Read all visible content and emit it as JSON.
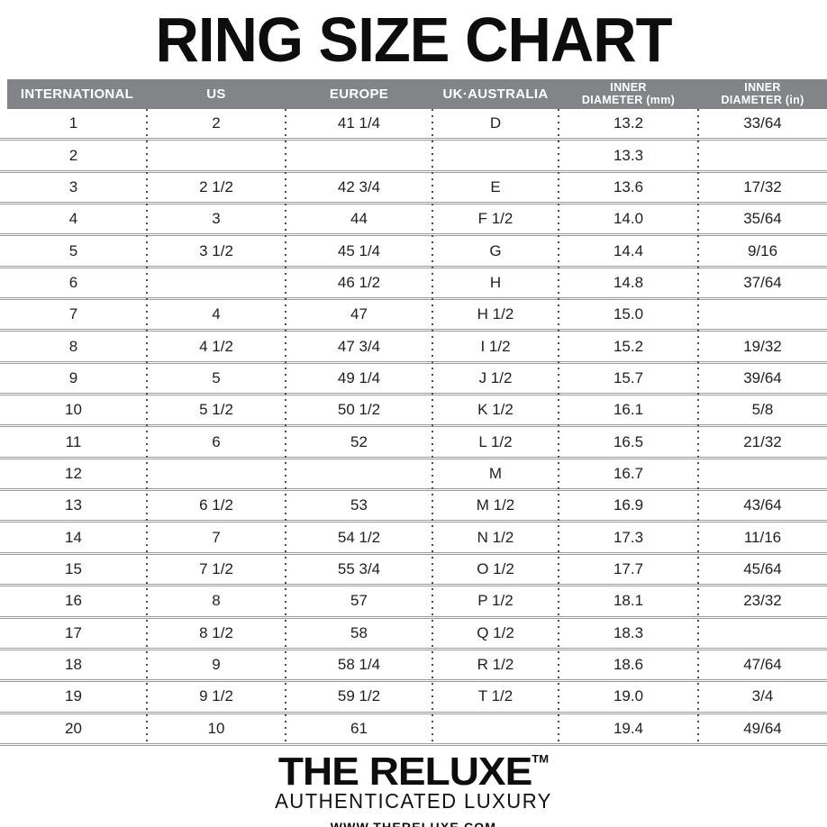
{
  "title": "RING SIZE CHART",
  "chart_data": {
    "type": "table",
    "title": "RING SIZE CHART",
    "columns": [
      "INTERNATIONAL",
      "US",
      "EUROPE",
      "UK·AUSTRALIA",
      "INNER DIAMETER (mm)",
      "INNER DIAMETER (in)"
    ],
    "header_lines": [
      [
        "INTERNATIONAL"
      ],
      [
        "US"
      ],
      [
        "EUROPE"
      ],
      [
        "UK·AUSTRALIA"
      ],
      [
        "INNER",
        "DIAMETER (mm)"
      ],
      [
        "INNER",
        "DIAMETER (in)"
      ]
    ],
    "rows": [
      [
        "1",
        "2",
        "41 1/4",
        "D",
        "13.2",
        "33/64"
      ],
      [
        "2",
        "",
        "",
        "",
        "13.3",
        ""
      ],
      [
        "3",
        "2 1/2",
        "42 3/4",
        "E",
        "13.6",
        "17/32"
      ],
      [
        "4",
        "3",
        "44",
        "F 1/2",
        "14.0",
        "35/64"
      ],
      [
        "5",
        "3 1/2",
        "45 1/4",
        "G",
        "14.4",
        "9/16"
      ],
      [
        "6",
        "",
        "46 1/2",
        "H",
        "14.8",
        "37/64"
      ],
      [
        "7",
        "4",
        "47",
        "H 1/2",
        "15.0",
        ""
      ],
      [
        "8",
        "4 1/2",
        "47 3/4",
        "I 1/2",
        "15.2",
        "19/32"
      ],
      [
        "9",
        "5",
        "49 1/4",
        "J 1/2",
        "15.7",
        "39/64"
      ],
      [
        "10",
        "5 1/2",
        "50 1/2",
        "K 1/2",
        "16.1",
        "5/8"
      ],
      [
        "11",
        "6",
        "52",
        "L 1/2",
        "16.5",
        "21/32"
      ],
      [
        "12",
        "",
        "",
        "M",
        "16.7",
        ""
      ],
      [
        "13",
        "6 1/2",
        "53",
        "M 1/2",
        "16.9",
        "43/64"
      ],
      [
        "14",
        "7",
        "54 1/2",
        "N 1/2",
        "17.3",
        "11/16"
      ],
      [
        "15",
        "7 1/2",
        "55 3/4",
        "O 1/2",
        "17.7",
        "45/64"
      ],
      [
        "16",
        "8",
        "57",
        "P 1/2",
        "18.1",
        "23/32"
      ],
      [
        "17",
        "8 1/2",
        "58",
        "Q 1/2",
        "18.3",
        ""
      ],
      [
        "18",
        "9",
        "58 1/4",
        "R 1/2",
        "18.6",
        "47/64"
      ],
      [
        "19",
        "9 1/2",
        "59 1/2",
        "T 1/2",
        "19.0",
        "3/4"
      ],
      [
        "20",
        "10",
        "61",
        "",
        "19.4",
        "49/64"
      ]
    ]
  },
  "footer": {
    "brand": "THE RELUXE",
    "trademark": "TM",
    "tagline": "AUTHENTICATED LUXURY",
    "website": "WWW.THERELUXE.COM"
  },
  "colors": {
    "header_background": "#828487",
    "header_text": "#ffffff",
    "row_line": "#9a9a9a",
    "separator_dots": "#4b4b4b",
    "text": "#1a1a1a"
  }
}
